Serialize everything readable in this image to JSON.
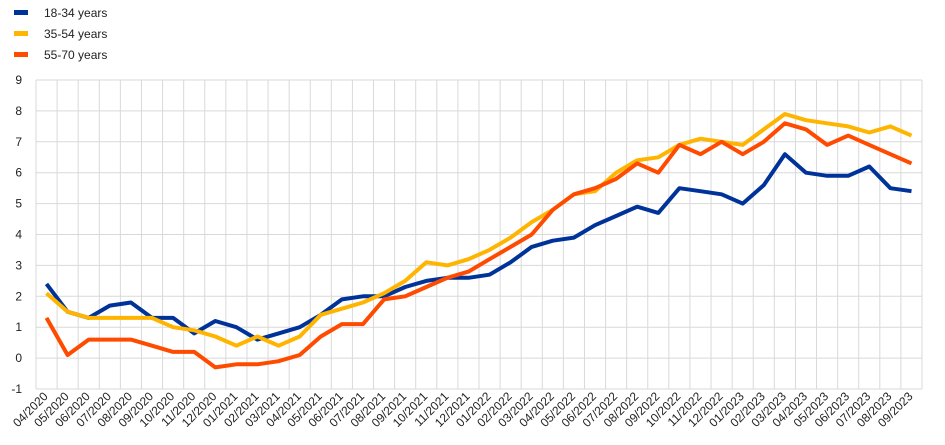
{
  "chart_data": {
    "type": "line",
    "categories": [
      "04/2020",
      "05/2020",
      "06/2020",
      "07/2020",
      "08/2020",
      "09/2020",
      "10/2020",
      "11/2020",
      "12/2020",
      "01/2021",
      "02/2021",
      "03/2021",
      "04/2021",
      "05/2021",
      "06/2021",
      "07/2021",
      "08/2021",
      "09/2021",
      "10/2021",
      "11/2021",
      "12/2021",
      "01/2022",
      "02/2022",
      "03/2022",
      "04/2022",
      "05/2022",
      "06/2022",
      "07/2022",
      "08/2022",
      "09/2022",
      "10/2022",
      "11/2022",
      "12/2022",
      "01/2023",
      "02/2023",
      "03/2023",
      "04/2023",
      "05/2023",
      "06/2023",
      "07/2023",
      "08/2023",
      "09/2023"
    ],
    "series": [
      {
        "name": "18-34 years",
        "color": "#003399",
        "values": [
          2.4,
          1.5,
          1.3,
          1.7,
          1.8,
          1.3,
          1.3,
          0.8,
          1.2,
          1.0,
          0.6,
          0.8,
          1.0,
          1.4,
          1.9,
          2.0,
          2.0,
          2.3,
          2.5,
          2.6,
          2.6,
          2.7,
          3.1,
          3.6,
          3.8,
          3.9,
          4.3,
          4.6,
          4.9,
          4.7,
          5.5,
          5.4,
          5.3,
          5.0,
          5.6,
          6.6,
          6.0,
          5.9,
          5.9,
          6.2,
          5.5,
          5.4
        ]
      },
      {
        "name": "35-54 years",
        "color": "#FFB400",
        "values": [
          2.1,
          1.5,
          1.3,
          1.3,
          1.3,
          1.3,
          1.0,
          0.9,
          0.7,
          0.4,
          0.7,
          0.4,
          0.7,
          1.4,
          1.6,
          1.8,
          2.1,
          2.5,
          3.1,
          3.0,
          3.2,
          3.5,
          3.9,
          4.4,
          4.8,
          5.3,
          5.4,
          6.0,
          6.4,
          6.5,
          6.9,
          7.1,
          7.0,
          6.9,
          7.4,
          7.9,
          7.7,
          7.6,
          7.5,
          7.3,
          7.5,
          7.2
        ]
      },
      {
        "name": "55-70 years",
        "color": "#FF4B00",
        "values": [
          1.3,
          0.1,
          0.6,
          0.6,
          0.6,
          0.4,
          0.2,
          0.2,
          -0.3,
          -0.2,
          -0.2,
          -0.1,
          0.1,
          0.7,
          1.1,
          1.1,
          1.9,
          2.0,
          2.3,
          2.6,
          2.8,
          3.2,
          3.6,
          4.0,
          4.8,
          5.3,
          5.5,
          5.8,
          6.3,
          6.0,
          6.9,
          6.6,
          7.0,
          6.6,
          7.0,
          7.6,
          7.4,
          6.9,
          7.2,
          6.9,
          6.6,
          6.3
        ]
      }
    ],
    "ylim": [
      -1,
      9
    ],
    "yticks": [
      -1,
      0,
      1,
      2,
      3,
      4,
      5,
      6,
      7,
      8,
      9
    ],
    "grid": true,
    "legend_placement": "top-left"
  }
}
